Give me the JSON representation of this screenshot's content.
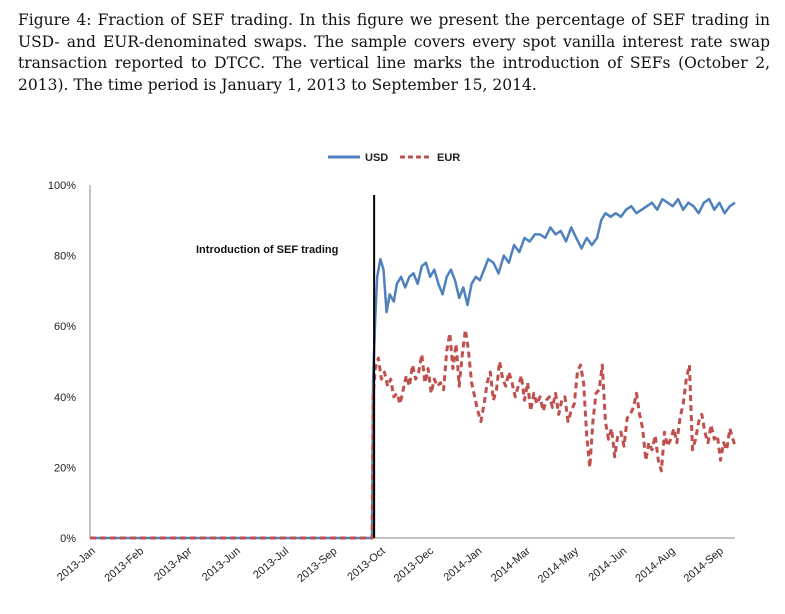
{
  "caption": {
    "label": "Figure 4:",
    "text": "Fraction of SEF trading. In this figure we present the percentage of SEF trading in USD- and EUR-denominated swaps. The sample covers every spot vanilla interest rate swap transaction reported to DTCC. The vertical line marks the introduction of SEFs (October 2, 2013). The time period is January 1, 2013 to September 15, 2014."
  },
  "chart_data": {
    "type": "line",
    "title": "",
    "xlabel": "",
    "ylabel": "",
    "ylim": [
      0,
      100
    ],
    "yticks": [
      "0%",
      "20%",
      "40%",
      "60%",
      "80%",
      "100%"
    ],
    "xticks": [
      "2013-Jan",
      "2013-Feb",
      "2013-Apr",
      "2013-Jun",
      "2013-Jul",
      "2013-Sep",
      "2013-Oct",
      "2013-Dec",
      "2014-Jan",
      "2014-Mar",
      "2014-May",
      "2014-Jun",
      "2014-Aug",
      "2014-Sep"
    ],
    "grid": false,
    "legend": "top-center",
    "x_axis": {
      "type": "date",
      "start": "2013-01-01",
      "end": "2014-09-15"
    },
    "annotation": {
      "text": "Introduction of SEF trading",
      "date": "2013-10-02"
    },
    "series": [
      {
        "name": "USD",
        "color": "#4f81bd",
        "style": "solid",
        "x": [
          "2013-01-01",
          "2013-09-30",
          "2013-10-01",
          "2013-10-03",
          "2013-10-05",
          "2013-10-08",
          "2013-10-11",
          "2013-10-14",
          "2013-10-17",
          "2013-10-21",
          "2013-10-24",
          "2013-10-28",
          "2013-11-01",
          "2013-11-05",
          "2013-11-09",
          "2013-11-13",
          "2013-11-17",
          "2013-11-21",
          "2013-11-25",
          "2013-11-29",
          "2013-12-03",
          "2013-12-07",
          "2013-12-11",
          "2013-12-15",
          "2013-12-19",
          "2013-12-23",
          "2013-12-27",
          "2013-12-31",
          "2014-01-04",
          "2014-01-08",
          "2014-01-12",
          "2014-01-16",
          "2014-01-20",
          "2014-01-25",
          "2014-01-30",
          "2014-02-04",
          "2014-02-09",
          "2014-02-14",
          "2014-02-19",
          "2014-02-24",
          "2014-03-01",
          "2014-03-06",
          "2014-03-11",
          "2014-03-16",
          "2014-03-21",
          "2014-03-26",
          "2014-03-31",
          "2014-04-05",
          "2014-04-10",
          "2014-04-15",
          "2014-04-20",
          "2014-04-25",
          "2014-04-30",
          "2014-05-05",
          "2014-05-09",
          "2014-05-13",
          "2014-05-18",
          "2014-05-23",
          "2014-05-28",
          "2014-06-02",
          "2014-06-07",
          "2014-06-12",
          "2014-06-17",
          "2014-06-22",
          "2014-06-27",
          "2014-07-02",
          "2014-07-07",
          "2014-07-12",
          "2014-07-17",
          "2014-07-22",
          "2014-07-27",
          "2014-08-01",
          "2014-08-06",
          "2014-08-11",
          "2014-08-16",
          "2014-08-21",
          "2014-08-26",
          "2014-08-31",
          "2014-09-05",
          "2014-09-10",
          "2014-09-15"
        ],
        "y": [
          0,
          0,
          45,
          62,
          74,
          79,
          76,
          64,
          69,
          67,
          72,
          74,
          71,
          74,
          75,
          72,
          77,
          78,
          74,
          76,
          72,
          69,
          74,
          76,
          73,
          68,
          71,
          66,
          72,
          74,
          73,
          76,
          79,
          78,
          75,
          80,
          78,
          83,
          81,
          85,
          84,
          86,
          86,
          85,
          88,
          86,
          87,
          84,
          88,
          85,
          82,
          85,
          83,
          85,
          90,
          92,
          91,
          92,
          91,
          93,
          94,
          92,
          93,
          94,
          95,
          93,
          96,
          95,
          94,
          96,
          93,
          95,
          94,
          92,
          95,
          96,
          93,
          95,
          92,
          94,
          95
        ]
      },
      {
        "name": "EUR",
        "color": "#c0504d",
        "style": "dashed",
        "x": [
          "2013-01-01",
          "2013-09-30",
          "2013-10-01",
          "2013-10-03",
          "2013-10-06",
          "2013-10-09",
          "2013-10-12",
          "2013-10-15",
          "2013-10-18",
          "2013-10-21",
          "2013-10-24",
          "2013-10-27",
          "2013-10-30",
          "2013-11-02",
          "2013-11-05",
          "2013-11-08",
          "2013-11-11",
          "2013-11-14",
          "2013-11-17",
          "2013-11-20",
          "2013-11-23",
          "2013-11-26",
          "2013-11-29",
          "2013-12-02",
          "2013-12-05",
          "2013-12-08",
          "2013-12-11",
          "2013-12-14",
          "2013-12-17",
          "2013-12-20",
          "2013-12-23",
          "2013-12-26",
          "2013-12-29",
          "2014-01-01",
          "2014-01-04",
          "2014-01-07",
          "2014-01-10",
          "2014-01-13",
          "2014-01-16",
          "2014-01-19",
          "2014-01-22",
          "2014-01-25",
          "2014-01-28",
          "2014-01-31",
          "2014-02-03",
          "2014-02-06",
          "2014-02-09",
          "2014-02-12",
          "2014-02-15",
          "2014-02-18",
          "2014-02-21",
          "2014-02-24",
          "2014-02-27",
          "2014-03-02",
          "2014-03-05",
          "2014-03-08",
          "2014-03-11",
          "2014-03-14",
          "2014-03-17",
          "2014-03-20",
          "2014-03-23",
          "2014-03-26",
          "2014-03-29",
          "2014-04-01",
          "2014-04-04",
          "2014-04-07",
          "2014-04-10",
          "2014-04-13",
          "2014-04-16",
          "2014-04-19",
          "2014-04-22",
          "2014-04-25",
          "2014-04-28",
          "2014-05-01",
          "2014-05-04",
          "2014-05-07",
          "2014-05-10",
          "2014-05-13",
          "2014-05-16",
          "2014-05-19",
          "2014-05-22",
          "2014-05-25",
          "2014-05-28",
          "2014-05-31",
          "2014-06-03",
          "2014-06-06",
          "2014-06-09",
          "2014-06-12",
          "2014-06-15",
          "2014-06-18",
          "2014-06-21",
          "2014-06-24",
          "2014-06-27",
          "2014-06-30",
          "2014-07-03",
          "2014-07-06",
          "2014-07-09",
          "2014-07-12",
          "2014-07-15",
          "2014-07-18",
          "2014-07-21",
          "2014-07-24",
          "2014-07-27",
          "2014-07-30",
          "2014-08-02",
          "2014-08-05",
          "2014-08-08",
          "2014-08-11",
          "2014-08-14",
          "2014-08-17",
          "2014-08-20",
          "2014-08-23",
          "2014-08-26",
          "2014-08-29",
          "2014-09-01",
          "2014-09-04",
          "2014-09-07",
          "2014-09-10",
          "2014-09-15"
        ],
        "y": [
          0,
          0,
          40,
          48,
          51,
          45,
          47,
          43,
          45,
          40,
          41,
          38,
          42,
          46,
          43,
          49,
          45,
          47,
          52,
          44,
          48,
          41,
          45,
          43,
          44,
          42,
          53,
          58,
          48,
          55,
          43,
          52,
          59,
          53,
          44,
          40,
          36,
          33,
          38,
          44,
          47,
          39,
          42,
          50,
          45,
          43,
          47,
          44,
          40,
          43,
          46,
          39,
          44,
          36,
          41,
          38,
          40,
          36,
          39,
          40,
          37,
          41,
          35,
          39,
          40,
          33,
          36,
          38,
          47,
          49,
          44,
          29,
          20,
          33,
          41,
          42,
          49,
          33,
          28,
          31,
          23,
          29,
          30,
          26,
          34,
          35,
          37,
          41,
          35,
          31,
          22,
          27,
          25,
          29,
          22,
          19,
          30,
          26,
          28,
          31,
          27,
          34,
          38,
          45,
          49,
          25,
          28,
          33,
          35,
          30,
          27,
          32,
          28,
          29,
          22,
          27,
          25,
          31,
          26
        ]
      }
    ]
  }
}
